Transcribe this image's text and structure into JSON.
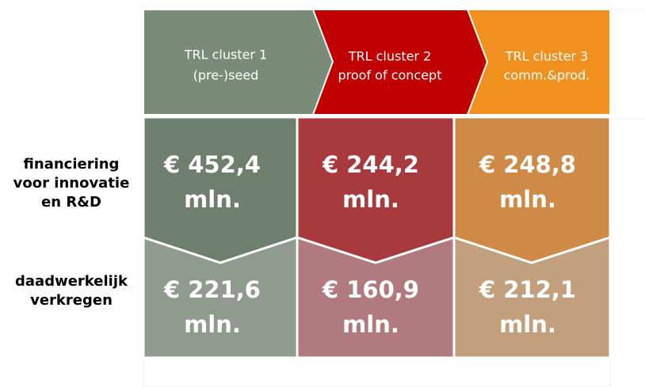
{
  "header": {
    "clusters": [
      {
        "lines": [
          "TRL cluster 1",
          "(pre-)seed"
        ]
      },
      {
        "lines": [
          "TRL cluster 2",
          "proof of concept"
        ]
      },
      {
        "lines": [
          "TRL cluster 3",
          "comm.&prod."
        ]
      }
    ]
  },
  "rows": [
    {
      "label": [
        "financiering",
        "voor innovatie",
        "en R&D"
      ],
      "cells": [
        [
          "€ 452,4",
          "mln."
        ],
        [
          "€ 244,2",
          "mln."
        ],
        [
          "€ 248,8",
          "mln."
        ]
      ]
    },
    {
      "label": [
        "daadwerkelijk",
        "verkregen"
      ],
      "cells": [
        [
          "€ 221,6",
          "mln."
        ],
        [
          "€ 160,9",
          "mln."
        ],
        [
          "€ 212,1",
          "mln."
        ]
      ]
    }
  ]
}
